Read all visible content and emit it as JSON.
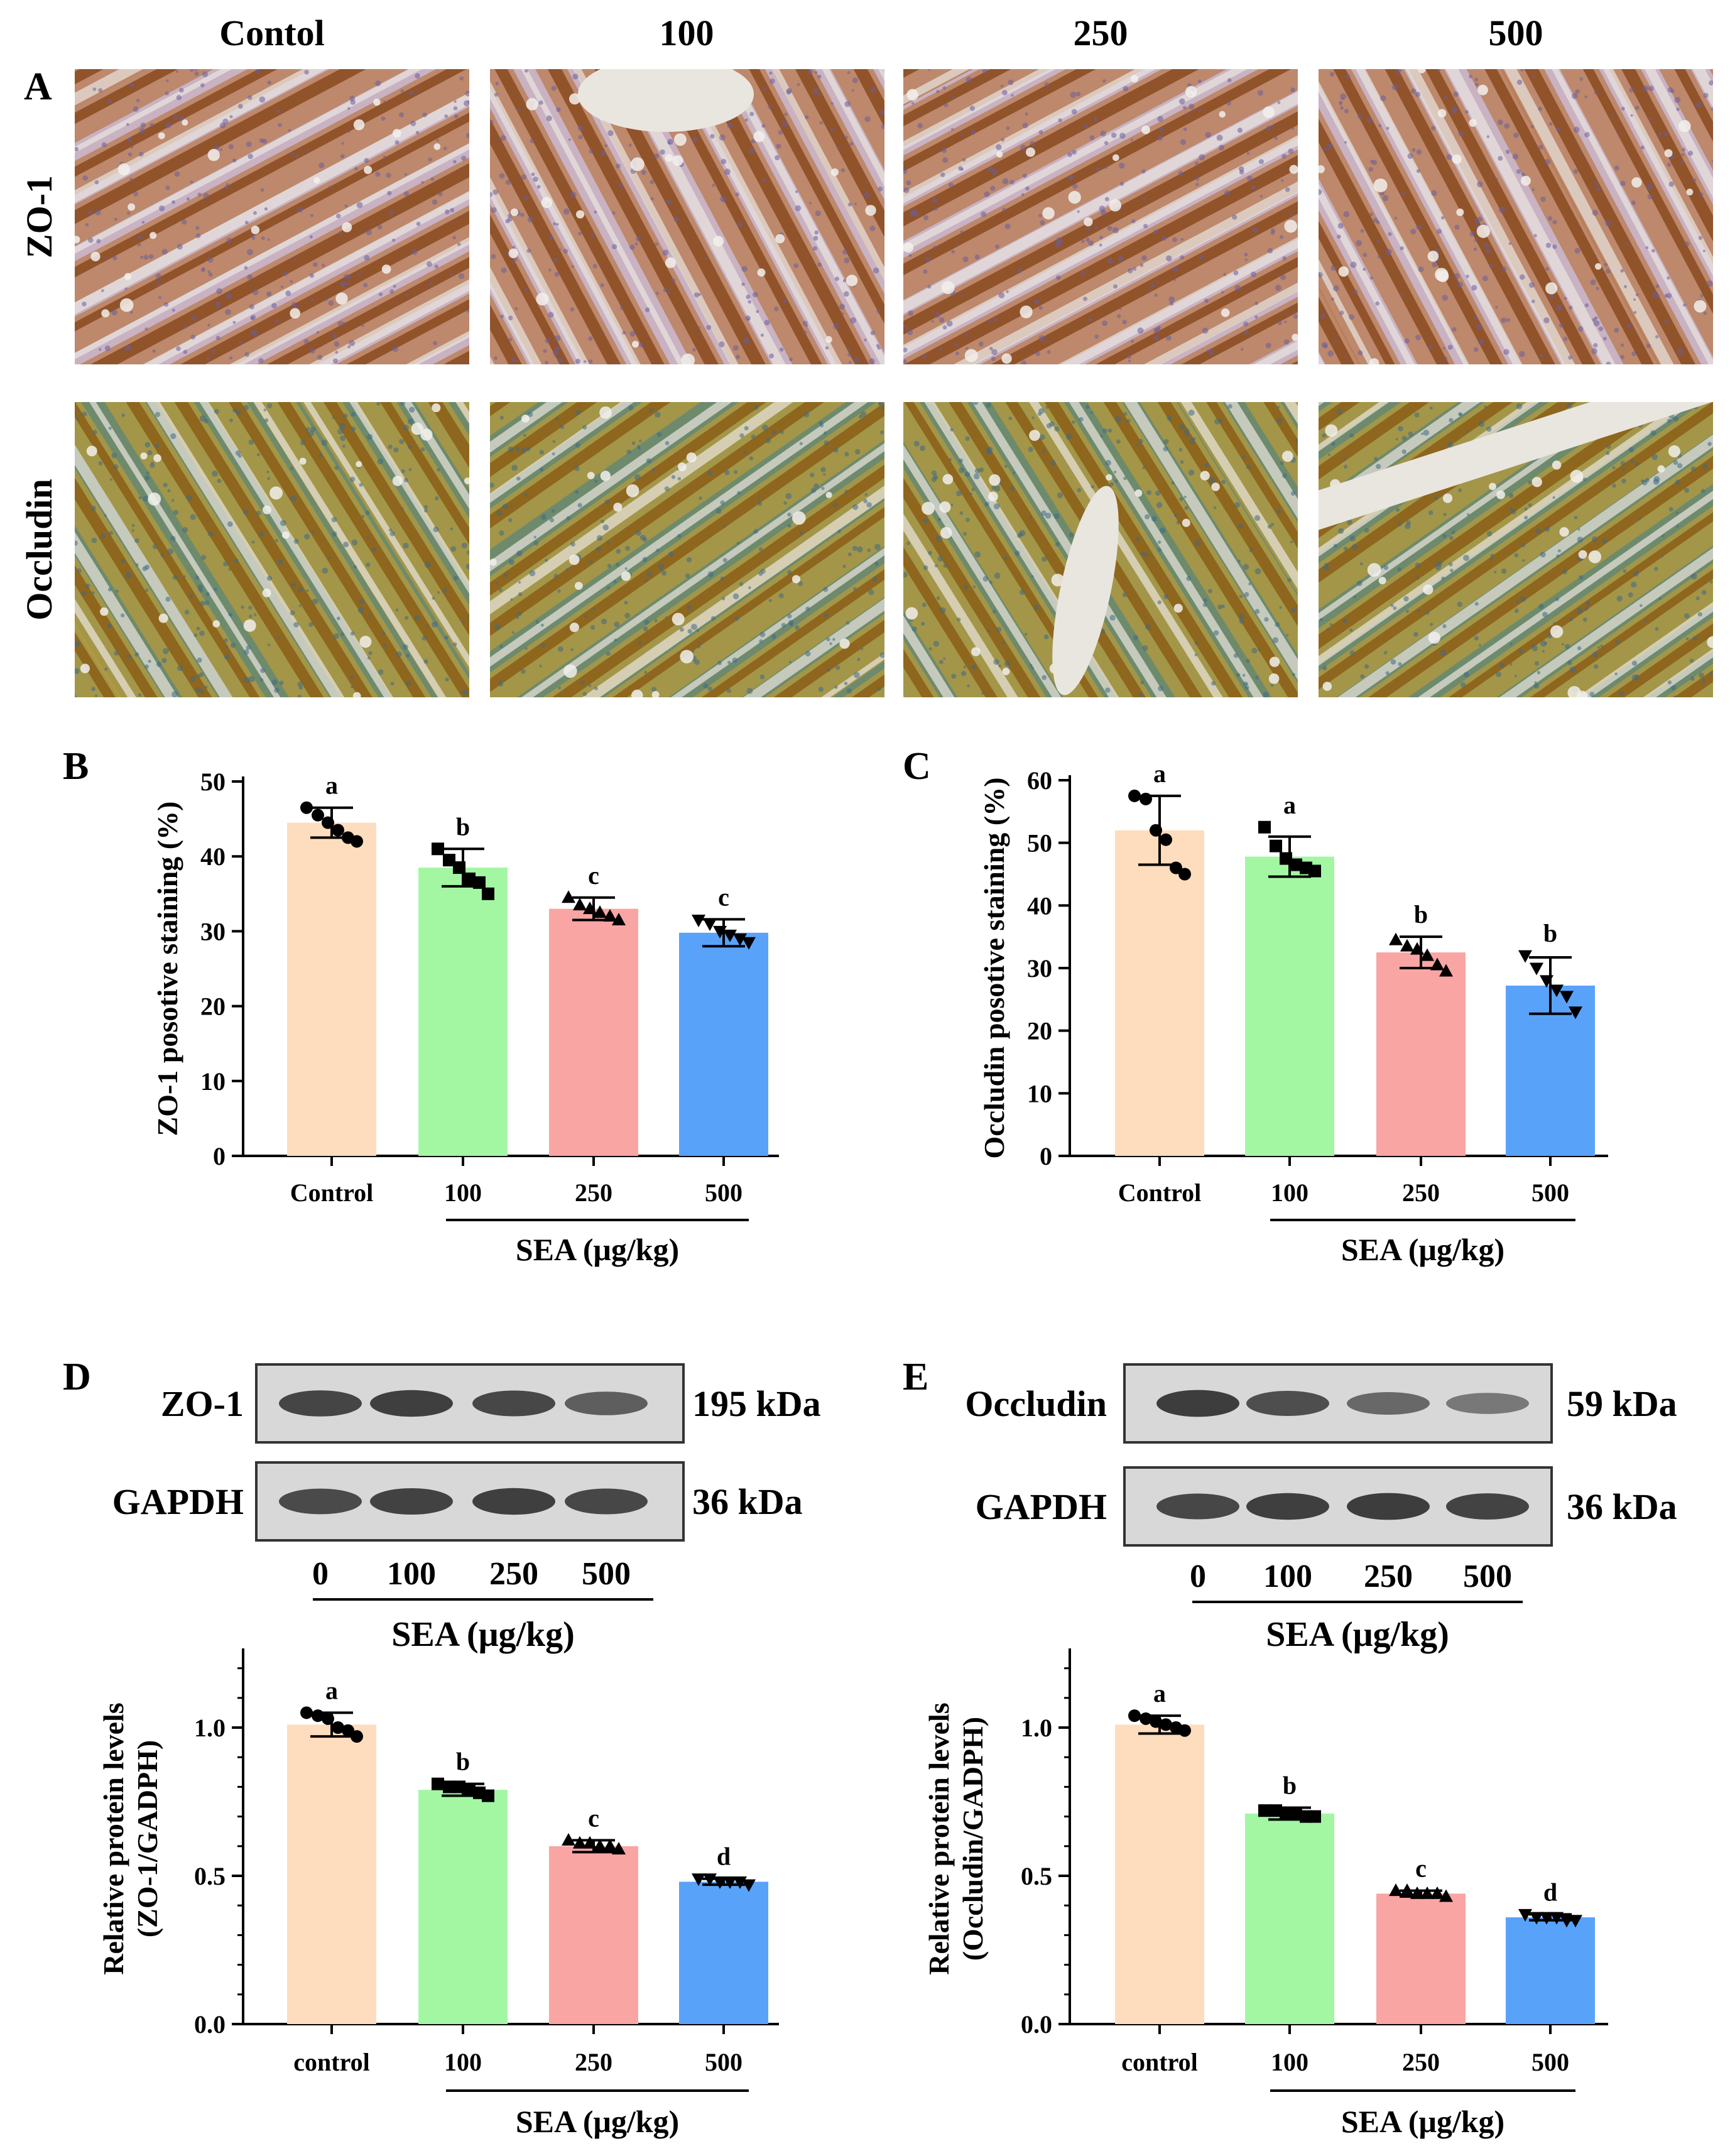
{
  "colors": {
    "control": "#FDDDBD",
    "g100": "#A3F7A3",
    "g250": "#F8A5A4",
    "g500": "#59A2FA",
    "zo1_stain_dark": "#8A4A1E",
    "zo1_stain_mid": "#B87A4E",
    "zo1_bg": "#C9B2C2",
    "zo1_nuclei": "#6A5E9C",
    "occ_stain_dark": "#8B5E16",
    "occ_stain_mid": "#B69A3C",
    "occ_bg": "#6E8A6C",
    "occ_nuclei": "#3F6A86",
    "lumen": "#E9E6E0",
    "band": "#2C2C2C",
    "blot_bg": "#D8D8D8"
  },
  "panelA": {
    "letter": "A",
    "col_headers": [
      "Contol",
      "100",
      "250",
      "500"
    ],
    "row_labels": [
      "ZO-1",
      "Occludin"
    ]
  },
  "chart_data": [
    {
      "id": "B",
      "letter": "B",
      "type": "bar",
      "categories": [
        "Control",
        "100",
        "250",
        "500"
      ],
      "values": [
        44.5,
        38.5,
        33.0,
        29.8
      ],
      "errors": [
        2.0,
        2.5,
        1.5,
        1.8
      ],
      "sig_letters": [
        "a",
        "b",
        "c",
        "c"
      ],
      "points": [
        [
          46.5,
          45.5,
          44.5,
          43.5,
          42.5,
          42.0
        ],
        [
          41.0,
          39.5,
          38.5,
          37.0,
          36.5,
          35.0
        ],
        [
          34.5,
          33.5,
          33.0,
          32.5,
          32.0,
          31.5
        ],
        [
          31.5,
          31.0,
          30.0,
          29.5,
          29.0,
          28.5
        ]
      ],
      "markers": [
        "circle",
        "square",
        "triangle-up",
        "triangle-down"
      ],
      "ylabel": "ZO-1 posotive staining (%)",
      "xgroup_label": "SEA (μg/kg)",
      "ylim": [
        0,
        50
      ],
      "yticks": [
        0,
        10,
        20,
        30,
        40,
        50
      ]
    },
    {
      "id": "C",
      "letter": "C",
      "type": "bar",
      "categories": [
        "Control",
        "100",
        "250",
        "500"
      ],
      "values": [
        52.0,
        47.8,
        32.5,
        27.2
      ],
      "errors": [
        5.5,
        3.2,
        2.5,
        4.5
      ],
      "sig_letters": [
        "a",
        "a",
        "b",
        "b"
      ],
      "points": [
        [
          57.5,
          57.0,
          52.0,
          50.5,
          46.0,
          45.0
        ],
        [
          52.5,
          49.5,
          47.5,
          46.5,
          46.0,
          45.5
        ],
        [
          34.5,
          33.5,
          33.0,
          32.0,
          30.5,
          29.5
        ],
        [
          32.0,
          30.0,
          28.0,
          26.5,
          25.5,
          23.0
        ]
      ],
      "markers": [
        "circle",
        "square",
        "triangle-up",
        "triangle-down"
      ],
      "ylabel": "Occludin posotive staining (%)",
      "xgroup_label": "SEA (μg/kg)",
      "ylim": [
        0,
        60
      ],
      "yticks": [
        0,
        10,
        20,
        30,
        40,
        50,
        60
      ]
    },
    {
      "id": "D",
      "type": "bar",
      "categories": [
        "control",
        "100",
        "250",
        "500"
      ],
      "values": [
        1.01,
        0.79,
        0.6,
        0.48
      ],
      "errors": [
        0.04,
        0.02,
        0.02,
        0.01
      ],
      "sig_letters": [
        "a",
        "b",
        "c",
        "d"
      ],
      "points": [
        [
          1.05,
          1.04,
          1.03,
          1.0,
          0.99,
          0.97
        ],
        [
          0.81,
          0.8,
          0.8,
          0.79,
          0.78,
          0.77
        ],
        [
          0.62,
          0.61,
          0.61,
          0.6,
          0.6,
          0.59
        ],
        [
          0.49,
          0.49,
          0.48,
          0.48,
          0.48,
          0.47
        ]
      ],
      "markers": [
        "circle",
        "square",
        "triangle-up",
        "triangle-down"
      ],
      "ylabel_line1": "Relative protein levels",
      "ylabel_line2": "(ZO-1/GADPH)",
      "xgroup_label": "SEA (μg/kg)",
      "ylim": [
        0,
        1.25
      ],
      "yticks": [
        "0.0",
        "0.5",
        "1.0"
      ]
    },
    {
      "id": "E",
      "type": "bar",
      "categories": [
        "control",
        "100",
        "250",
        "500"
      ],
      "values": [
        1.01,
        0.71,
        0.44,
        0.36
      ],
      "errors": [
        0.03,
        0.02,
        0.01,
        0.01
      ],
      "sig_letters": [
        "a",
        "b",
        "c",
        "d"
      ],
      "points": [
        [
          1.04,
          1.03,
          1.02,
          1.01,
          1.0,
          0.99
        ],
        [
          0.72,
          0.72,
          0.71,
          0.71,
          0.7,
          0.7
        ],
        [
          0.45,
          0.45,
          0.44,
          0.44,
          0.44,
          0.43
        ],
        [
          0.37,
          0.36,
          0.36,
          0.36,
          0.35,
          0.35
        ]
      ],
      "markers": [
        "circle",
        "square",
        "triangle-up",
        "triangle-down"
      ],
      "ylabel_line1": "Relative protein levels",
      "ylabel_line2": "(Occludin/GADPH)",
      "xgroup_label": "SEA (μg/kg)",
      "ylim": [
        0,
        1.25
      ],
      "yticks": [
        "0.0",
        "0.5",
        "1.0"
      ]
    }
  ],
  "blots": [
    {
      "id": "D",
      "letter": "D",
      "targets": [
        {
          "name": "ZO-1",
          "kda": "195 kDa",
          "intensity": [
            0.85,
            0.9,
            0.82,
            0.6
          ]
        },
        {
          "name": "GAPDH",
          "kda": "36 kDa",
          "intensity": [
            0.8,
            0.88,
            0.9,
            0.82
          ]
        }
      ],
      "lanes": [
        "0",
        "100",
        "250",
        "500"
      ],
      "group_label": "SEA (μg/kg)"
    },
    {
      "id": "E",
      "letter": "E",
      "targets": [
        {
          "name": "Occludin",
          "kda": "59 kDa",
          "intensity": [
            0.92,
            0.75,
            0.5,
            0.35
          ]
        },
        {
          "name": "GAPDH",
          "kda": "36 kDa",
          "intensity": [
            0.82,
            0.9,
            0.92,
            0.86
          ]
        }
      ],
      "lanes": [
        "0",
        "100",
        "250",
        "500"
      ],
      "group_label": "SEA (μg/kg)"
    }
  ]
}
